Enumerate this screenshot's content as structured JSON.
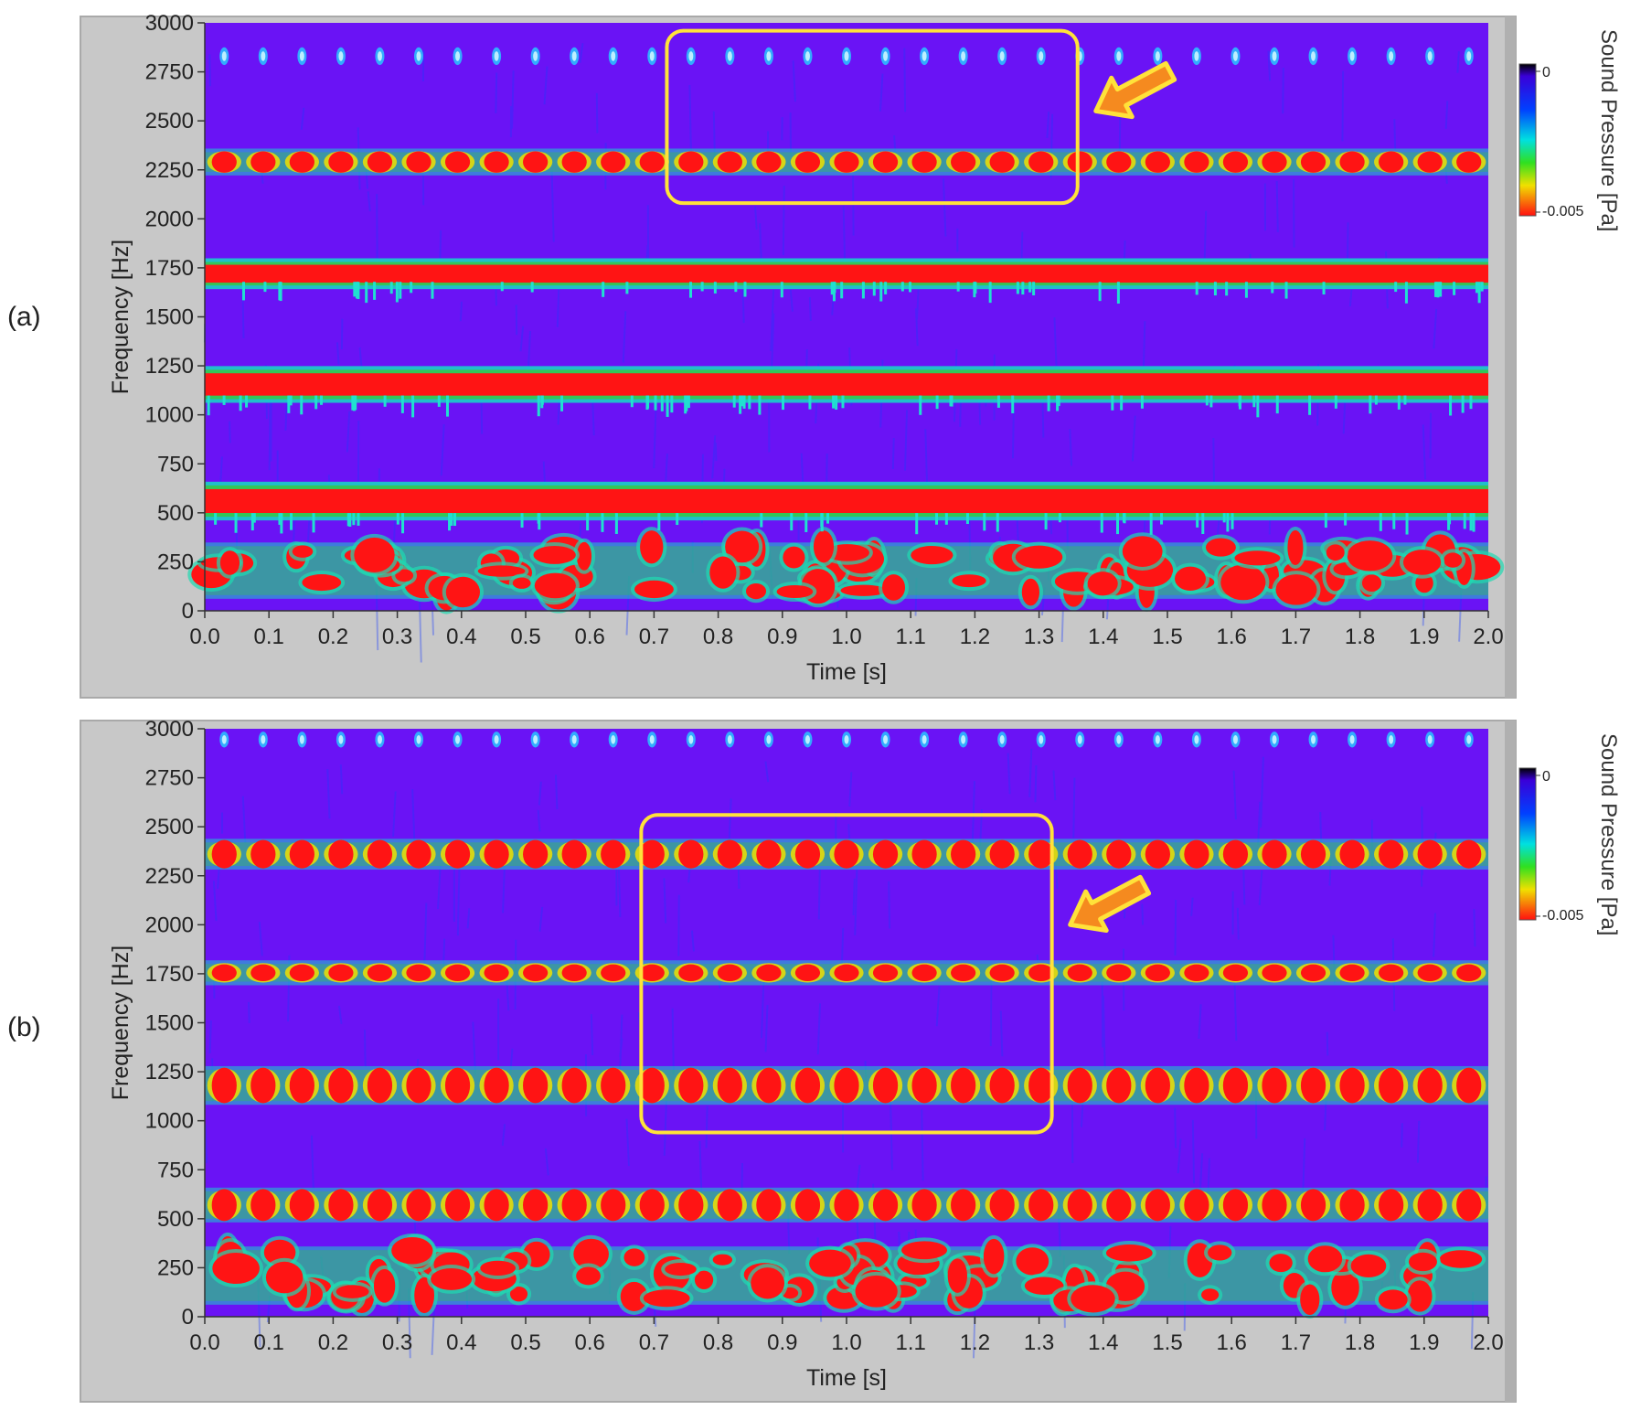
{
  "chart_data": [
    {
      "type": "heatmap",
      "panel_label": "(a)",
      "xlabel": "Time [s]",
      "ylabel": "Frequency [Hz]",
      "xlim": [
        0.0,
        2.0
      ],
      "ylim": [
        0,
        3000
      ],
      "x_ticks": [
        "0.0",
        "0.1",
        "0.2",
        "0.3",
        "0.4",
        "0.5",
        "0.6",
        "0.7",
        "0.8",
        "0.9",
        "1.0",
        "1.1",
        "1.2",
        "1.3",
        "1.4",
        "1.5",
        "1.6",
        "1.7",
        "1.8",
        "1.9",
        "2.0"
      ],
      "y_ticks": [
        "0",
        "250",
        "500",
        "750",
        "1000",
        "1250",
        "1500",
        "1750",
        "2000",
        "2250",
        "2500",
        "2750",
        "3000"
      ],
      "colorbar": {
        "title": "Sound Pressure [Pa]",
        "max_label": "0",
        "min_label": "-0.005"
      },
      "background_color": "#6a13f5",
      "bands": [
        {
          "name": "",
          "f_low": 80,
          "f_high": 330,
          "pattern": "irregular",
          "blob_count": 32,
          "intensity": 1.0
        },
        {
          "name": "",
          "f_low": 480,
          "f_high": 640,
          "pattern": "continuous",
          "blob_count": 60,
          "intensity": 1.0
        },
        {
          "name": "",
          "f_low": 1080,
          "f_high": 1230,
          "pattern": "continuous",
          "blob_count": 70,
          "intensity": 1.0
        },
        {
          "name": "",
          "f_low": 1660,
          "f_high": 1780,
          "pattern": "continuous",
          "blob_count": 60,
          "intensity": 1.0
        },
        {
          "name": "",
          "f_low": 2240,
          "f_high": 2340,
          "pattern": "periodic",
          "blob_count": 33,
          "intensity": 0.8
        },
        {
          "name": "",
          "f_low": 2780,
          "f_high": 2880,
          "pattern": "faint",
          "blob_count": 33,
          "intensity": 0.3
        }
      ],
      "highlight_box": {
        "t_start": 0.72,
        "t_end": 1.36,
        "f_low": 2080,
        "f_high": 2960
      },
      "arrow_points_to": {
        "t": 1.38,
        "f": 2550
      }
    },
    {
      "type": "heatmap",
      "panel_label": "(b)",
      "xlabel": "Time [s]",
      "ylabel": "Frequency [Hz]",
      "xlim": [
        0.0,
        2.0
      ],
      "ylim": [
        0,
        3000
      ],
      "x_ticks": [
        "0.0",
        "0.1",
        "0.2",
        "0.3",
        "0.4",
        "0.5",
        "0.6",
        "0.7",
        "0.8",
        "0.9",
        "1.0",
        "1.1",
        "1.2",
        "1.3",
        "1.4",
        "1.5",
        "1.6",
        "1.7",
        "1.8",
        "1.9",
        "2.0"
      ],
      "y_ticks": [
        "0",
        "250",
        "500",
        "750",
        "1000",
        "1250",
        "1500",
        "1750",
        "2000",
        "2250",
        "2500",
        "2750",
        "3000"
      ],
      "colorbar": {
        "title": "Sound Pressure [Pa]",
        "max_label": "0",
        "min_label": "-0.005"
      },
      "background_color": "#6a13f5",
      "bands": [
        {
          "name": "",
          "f_low": 80,
          "f_high": 340,
          "pattern": "irregular",
          "blob_count": 30,
          "intensity": 1.0
        },
        {
          "name": "",
          "f_low": 500,
          "f_high": 640,
          "pattern": "periodic",
          "blob_count": 33,
          "intensity": 1.0
        },
        {
          "name": "",
          "f_low": 1100,
          "f_high": 1260,
          "pattern": "periodic",
          "blob_count": 33,
          "intensity": 1.0
        },
        {
          "name": "",
          "f_low": 1710,
          "f_high": 1800,
          "pattern": "periodic",
          "blob_count": 33,
          "intensity": 0.6
        },
        {
          "name": "",
          "f_low": 2300,
          "f_high": 2420,
          "pattern": "periodic",
          "blob_count": 33,
          "intensity": 1.0
        },
        {
          "name": "",
          "f_low": 2900,
          "f_high": 2990,
          "pattern": "faint",
          "blob_count": 33,
          "intensity": 0.3
        }
      ],
      "highlight_box": {
        "t_start": 0.68,
        "t_end": 1.32,
        "f_low": 940,
        "f_high": 2560
      },
      "arrow_points_to": {
        "t": 1.34,
        "f": 2000
      }
    }
  ]
}
